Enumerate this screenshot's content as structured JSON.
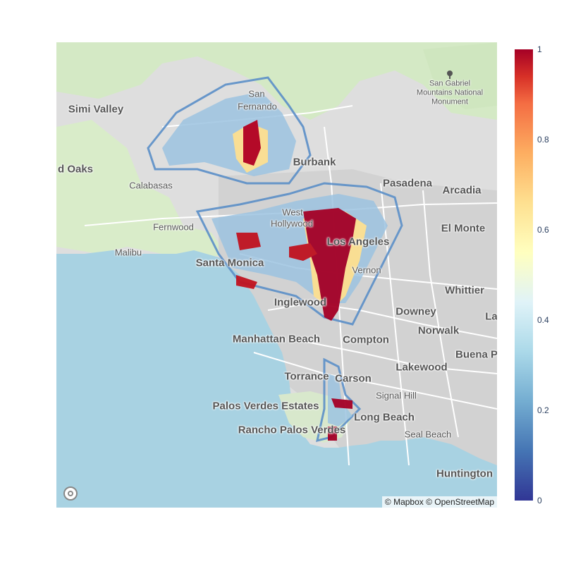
{
  "map": {
    "places": [
      {
        "name": "Simi Valley",
        "class": "major"
      },
      {
        "name": "San",
        "class": "minor"
      },
      {
        "name": "Fernando",
        "class": "minor"
      },
      {
        "name": "Burbank",
        "class": "major"
      },
      {
        "name": "d Oaks",
        "class": "major"
      },
      {
        "name": "Calabasas",
        "class": "minor"
      },
      {
        "name": "Pasadena",
        "class": "major"
      },
      {
        "name": "Arcadia",
        "class": "major"
      },
      {
        "name": "West",
        "class": "minor"
      },
      {
        "name": "Hollywood",
        "class": "minor"
      },
      {
        "name": "Fernwood",
        "class": "minor"
      },
      {
        "name": "El Monte",
        "class": "major"
      },
      {
        "name": "Los Angeles",
        "class": "major"
      },
      {
        "name": "Malibu",
        "class": "minor"
      },
      {
        "name": "Santa Monica",
        "class": "major"
      },
      {
        "name": "Vernon",
        "class": "minor"
      },
      {
        "name": "Whittier",
        "class": "major"
      },
      {
        "name": "Inglewood",
        "class": "major"
      },
      {
        "name": "Downey",
        "class": "major"
      },
      {
        "name": "La",
        "class": "major"
      },
      {
        "name": "Norwalk",
        "class": "major"
      },
      {
        "name": "Manhattan Beach",
        "class": "major"
      },
      {
        "name": "Compton",
        "class": "major"
      },
      {
        "name": "Buena P",
        "class": "major"
      },
      {
        "name": "Lakewood",
        "class": "major"
      },
      {
        "name": "Torrance",
        "class": "major"
      },
      {
        "name": "Carson",
        "class": "major"
      },
      {
        "name": "Signal Hill",
        "class": "minor"
      },
      {
        "name": "Palos Verdes Estates",
        "class": "major"
      },
      {
        "name": "Long Beach",
        "class": "major"
      },
      {
        "name": "Rancho Palos Verdes",
        "class": "major"
      },
      {
        "name": "Seal Beach",
        "class": "minor"
      },
      {
        "name": "Huntington",
        "class": "major"
      },
      {
        "name": "San Gabriel Mountains National Monument",
        "class": "park"
      }
    ],
    "attribution": "© Mapbox © OpenStreetMap"
  },
  "colorbar": {
    "colorscale": "RdYlBu_r",
    "colors": [
      "#313695",
      "#4575b4",
      "#74add1",
      "#abd9e9",
      "#e0f3f8",
      "#ffffbf",
      "#fee090",
      "#fdae61",
      "#f46d43",
      "#d73027",
      "#a50026"
    ],
    "range": [
      0,
      1
    ],
    "ticks": [
      "0",
      "0.2",
      "0.4",
      "0.6",
      "0.8",
      "1"
    ]
  },
  "icons": [
    "mapbox-logo-icon",
    "park-tree-icon"
  ]
}
